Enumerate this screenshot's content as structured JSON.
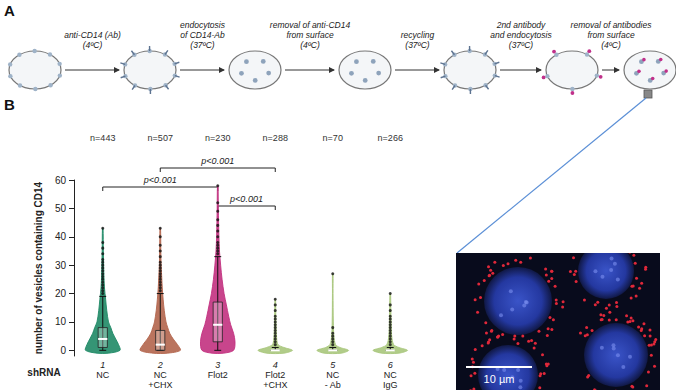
{
  "diagram": {
    "label": "A",
    "steps": [
      [
        "anti-CD14 (Ab)",
        "(4ºC)"
      ],
      [
        "endocytosis",
        "of CD14-Ab",
        "(37ºC)"
      ],
      [
        "removal of anti-CD14",
        "from surface",
        "(4ºC)"
      ],
      [
        "recycling",
        "(37ºC)"
      ],
      [
        "2nd antibody",
        "and endocytosis",
        "(37ºC)"
      ],
      [
        "removal of antibodies",
        "from surface",
        "(4ºC)"
      ]
    ]
  },
  "chart_data": {
    "label": "B",
    "type": "violin",
    "y_label": "number of vesicles containing CD14",
    "x_label": "shRNA",
    "categories": [
      "NC",
      "NC\n+CHX",
      "Flot2",
      "Flot2\n+CHX",
      "NC\n- Ab",
      "NC\nIgG"
    ],
    "category_numbers": [
      1,
      2,
      3,
      4,
      5,
      6
    ],
    "n_labels": [
      "n=443",
      "n=507",
      "n=230",
      "n=288",
      "n=70",
      "n=266"
    ],
    "colors": [
      "#1f8a66",
      "#b3654c",
      "#c2317f",
      "#a9c77c",
      "#a9c77c",
      "#a9c77c"
    ],
    "ylim": [
      -2,
      60
    ],
    "yticks": [
      0,
      10,
      20,
      30,
      40,
      50,
      60
    ],
    "grid": false,
    "whisker_low": [
      0,
      0,
      0,
      0,
      0,
      0
    ],
    "q1": [
      1,
      0,
      3,
      0,
      0,
      0
    ],
    "median": [
      4,
      2,
      9,
      0,
      0,
      0
    ],
    "q3": [
      8,
      7,
      17,
      0,
      0,
      0
    ],
    "whisker_high": [
      19,
      20,
      33,
      1,
      1,
      1
    ],
    "density_y": [
      [
        -1,
        0,
        2,
        4,
        6,
        8,
        10,
        14,
        18,
        22,
        26,
        30,
        35,
        43
      ],
      [
        -1,
        0,
        2,
        4,
        6,
        8,
        10,
        14,
        18,
        22,
        26,
        30,
        35,
        43
      ],
      [
        -1,
        0,
        3,
        6,
        9,
        12,
        16,
        20,
        25,
        30,
        35,
        40,
        50,
        58
      ],
      [
        -1,
        0,
        1,
        2,
        4,
        8,
        12,
        18
      ],
      [
        -1,
        0,
        1,
        2,
        5,
        10,
        20,
        27
      ],
      [
        -1,
        0,
        1,
        2,
        5,
        10,
        15,
        20
      ]
    ],
    "density_width": [
      [
        0.2,
        0.6,
        0.55,
        0.45,
        0.35,
        0.28,
        0.2,
        0.14,
        0.1,
        0.06,
        0.04,
        0.03,
        0.02,
        0.01
      ],
      [
        0.25,
        0.7,
        0.6,
        0.45,
        0.33,
        0.26,
        0.2,
        0.14,
        0.1,
        0.07,
        0.05,
        0.03,
        0.02,
        0.01
      ],
      [
        0.2,
        0.55,
        0.6,
        0.55,
        0.45,
        0.38,
        0.3,
        0.22,
        0.15,
        0.1,
        0.06,
        0.04,
        0.02,
        0.01
      ],
      [
        0.3,
        0.6,
        0.3,
        0.1,
        0.05,
        0.03,
        0.02,
        0.01
      ],
      [
        0.3,
        0.55,
        0.25,
        0.1,
        0.04,
        0.02,
        0.01,
        0.01
      ],
      [
        0.3,
        0.6,
        0.3,
        0.12,
        0.05,
        0.03,
        0.02,
        0.01
      ]
    ],
    "outliers": [
      [
        20,
        21,
        22,
        23,
        24,
        25,
        26,
        27,
        28,
        29,
        30,
        31,
        32,
        34,
        36,
        38,
        43
      ],
      [
        21,
        22,
        23,
        24,
        25,
        26,
        27,
        28,
        29,
        30,
        31,
        33,
        35,
        37,
        40,
        43
      ],
      [
        34,
        35,
        36,
        37,
        38,
        40,
        42,
        44,
        46,
        49,
        52,
        58
      ],
      [
        2,
        3,
        4,
        5,
        6,
        7,
        8,
        9,
        10,
        11,
        12,
        14,
        16,
        18
      ],
      [
        2,
        3,
        4,
        5,
        6,
        8,
        27
      ],
      [
        2,
        3,
        4,
        5,
        6,
        7,
        8,
        9,
        10,
        11,
        12,
        14,
        16,
        20
      ]
    ],
    "comparisons": [
      {
        "groups": [
          2,
          4
        ],
        "label": "p<0.001"
      },
      {
        "groups": [
          1,
          3
        ],
        "label": "p<0.001"
      },
      {
        "groups": [
          3,
          4
        ],
        "label": "p<0.001"
      }
    ]
  },
  "image": {
    "scale_bar": "10 µm"
  }
}
